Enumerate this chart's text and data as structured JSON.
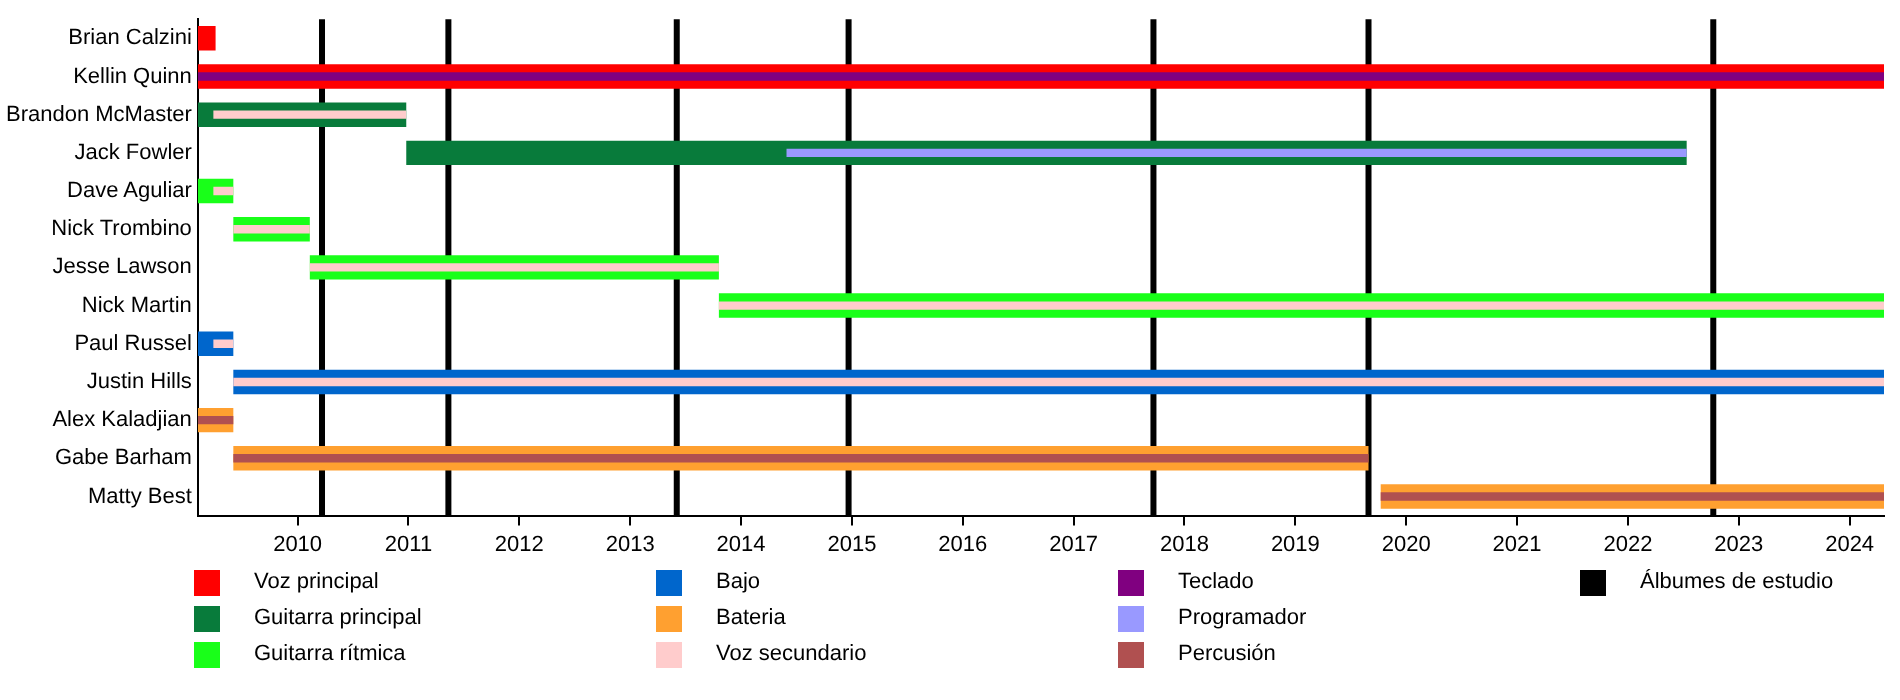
{
  "chart_data": {
    "type": "bar",
    "orientation": "horizontal",
    "categories": [
      "Brian Calzini",
      "Kellin Quinn",
      "Brandon McMaster",
      "Jack Fowler",
      "Dave Aguliar",
      "Nick Trombino",
      "Jesse Lawson",
      "Nick Martin",
      "Paul Russel",
      "Justin Hills",
      "Alex Kaladjian",
      "Gabe Barham",
      "Matty Best"
    ],
    "xlim": [
      2009.1,
      2024.31
    ],
    "xticks": [
      2010,
      2011,
      2012,
      2013,
      2014,
      2015,
      2016,
      2017,
      2018,
      2019,
      2020,
      2021,
      2022,
      2023,
      2024
    ],
    "grid": false,
    "legend": "bottom",
    "series": [
      {
        "name": "Voz principal",
        "color": "#ff0000",
        "base": [
          2009.1,
          2009.1,
          null,
          null,
          null,
          null,
          null,
          null,
          null,
          null,
          null,
          null,
          null
        ],
        "values": [
          0.16,
          15.21,
          null,
          null,
          null,
          null,
          null,
          null,
          null,
          null,
          null,
          null,
          null
        ]
      },
      {
        "name": "Guitarra principal",
        "color": "#087b3b",
        "base": [
          null,
          null,
          2009.1,
          2010.98,
          null,
          null,
          null,
          null,
          null,
          null,
          null,
          null,
          null
        ],
        "values": [
          null,
          null,
          1.88,
          11.55,
          null,
          null,
          null,
          null,
          null,
          null,
          null,
          null,
          null
        ]
      },
      {
        "name": "Guitarra rítmica",
        "color": "#19ff19",
        "base": [
          null,
          null,
          null,
          null,
          2009.1,
          2009.42,
          2010.11,
          2013.8,
          null,
          null,
          null,
          null,
          null
        ],
        "values": [
          null,
          null,
          null,
          null,
          0.32,
          0.69,
          3.69,
          10.51,
          null,
          null,
          null,
          null,
          null
        ]
      },
      {
        "name": "Bajo",
        "color": "#0066cc",
        "base": [
          null,
          null,
          null,
          null,
          null,
          null,
          null,
          null,
          2009.1,
          2009.42,
          null,
          null,
          null
        ],
        "values": [
          null,
          null,
          null,
          null,
          null,
          null,
          null,
          null,
          0.32,
          14.89,
          null,
          null,
          null
        ]
      },
      {
        "name": "Bateria",
        "color": "#ffa030",
        "base": [
          null,
          null,
          null,
          null,
          null,
          null,
          null,
          null,
          null,
          null,
          2009.1,
          2009.42,
          2019.77
        ],
        "values": [
          null,
          null,
          null,
          null,
          null,
          null,
          null,
          null,
          null,
          null,
          0.32,
          10.24,
          4.54
        ]
      },
      {
        "name": "Voz secundario",
        "color": "#ffcccc",
        "base": [
          null,
          null,
          2009.24,
          null,
          2009.24,
          2009.42,
          2010.11,
          2013.8,
          2009.24,
          2009.42,
          null,
          null,
          null
        ],
        "values": [
          null,
          null,
          1.74,
          null,
          0.18,
          0.69,
          3.69,
          10.51,
          0.18,
          14.89,
          null,
          null,
          null
        ]
      },
      {
        "name": "Teclado",
        "color": "#800080",
        "base": [
          null,
          2009.1,
          null,
          null,
          null,
          null,
          null,
          null,
          null,
          null,
          null,
          null,
          null
        ],
        "values": [
          null,
          15.21,
          null,
          null,
          null,
          null,
          null,
          null,
          null,
          null,
          null,
          null,
          null
        ]
      },
      {
        "name": "Programador",
        "color": "#9999ff",
        "base": [
          null,
          null,
          null,
          2014.41,
          null,
          null,
          null,
          null,
          null,
          null,
          null,
          null,
          null
        ],
        "values": [
          null,
          null,
          null,
          8.12,
          null,
          null,
          null,
          null,
          null,
          null,
          null,
          null,
          null
        ]
      },
      {
        "name": "Percusión",
        "color": "#b05050",
        "base": [
          null,
          null,
          null,
          null,
          null,
          null,
          null,
          null,
          null,
          null,
          2009.1,
          2009.42,
          2019.77
        ],
        "values": [
          null,
          null,
          null,
          null,
          null,
          null,
          null,
          null,
          null,
          null,
          0.32,
          10.24,
          4.54
        ]
      }
    ],
    "ref_lines": [
      {
        "axis": "x",
        "value": 2010.22,
        "label": "Álbumes de estudio",
        "color": "#000000"
      },
      {
        "axis": "x",
        "value": 2011.36,
        "color": "#000000"
      },
      {
        "axis": "x",
        "value": 2013.42,
        "color": "#000000"
      },
      {
        "axis": "x",
        "value": 2014.97,
        "color": "#000000"
      },
      {
        "axis": "x",
        "value": 2017.72,
        "color": "#000000"
      },
      {
        "axis": "x",
        "value": 2019.66,
        "color": "#000000"
      },
      {
        "axis": "x",
        "value": 2022.77,
        "color": "#000000"
      }
    ]
  }
}
